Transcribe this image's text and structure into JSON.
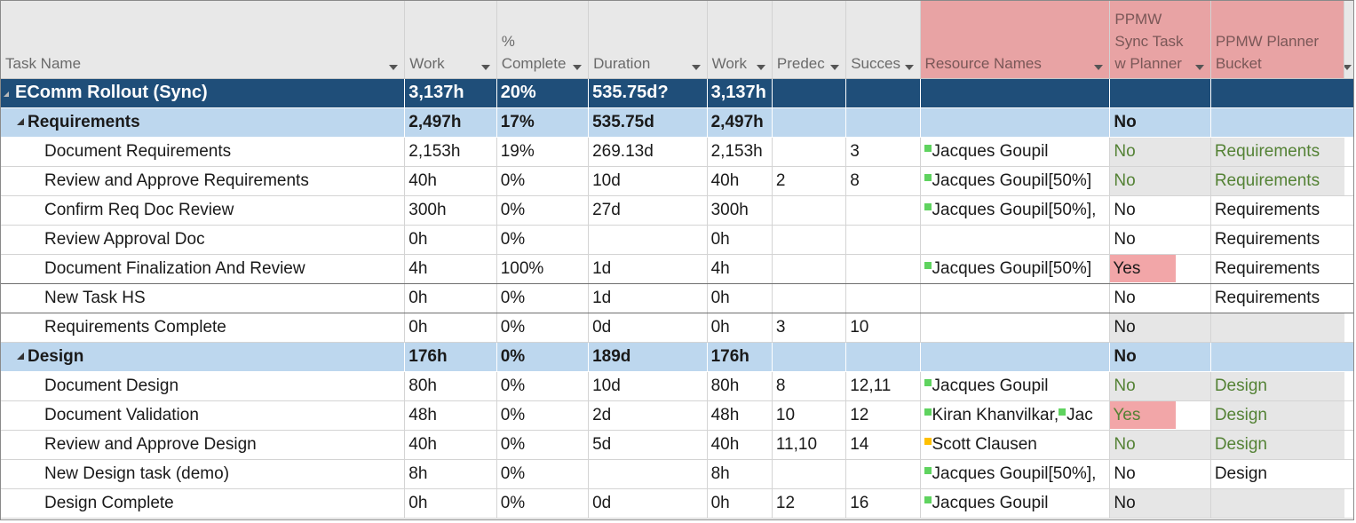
{
  "columns": [
    {
      "key": "task_name",
      "label": "Task Name",
      "has_dropdown": true
    },
    {
      "key": "work",
      "label": "Work",
      "has_dropdown": true
    },
    {
      "key": "percent_complete",
      "label": "% Complete",
      "has_dropdown": true
    },
    {
      "key": "duration",
      "label": "Duration",
      "has_dropdown": true
    },
    {
      "key": "work2",
      "label": "Work",
      "has_dropdown": true
    },
    {
      "key": "predecessors",
      "label": "Predec",
      "has_dropdown": true
    },
    {
      "key": "successors",
      "label": "Succes",
      "has_dropdown": true
    },
    {
      "key": "resource_names",
      "label": "Resource Names",
      "has_dropdown": true
    },
    {
      "key": "sync",
      "label": "PPMW Sync Task w Planner",
      "has_dropdown": true
    },
    {
      "key": "bucket",
      "label": "PPMW Planner Bucket",
      "has_dropdown": false
    }
  ],
  "colors": {
    "project_row": "#1f4e79",
    "summary_row": "#bdd7ee",
    "custom_header": "#e8a3a4",
    "flag_highlight": "#f2a6a8",
    "green_text": "#548235",
    "resource_marker_green": "#5fd35f",
    "resource_marker_yellow": "#ffc000"
  },
  "rows": [
    {
      "type": "project",
      "name": "EComm Rollout (Sync)",
      "work": "3,137h",
      "pct": "20%",
      "duration": "535.75d?",
      "work2": "3,137h",
      "pred": "",
      "succ": "",
      "res": "",
      "res_marker": "",
      "sync": "",
      "bucket": "",
      "sync_style": "",
      "bucket_style": ""
    },
    {
      "type": "summary",
      "name": "Requirements",
      "work": "2,497h",
      "pct": "17%",
      "duration": "535.75d",
      "work2": "2,497h",
      "pred": "",
      "succ": "",
      "res": "",
      "res_marker": "",
      "sync": "No",
      "bucket": "",
      "sync_style": "",
      "bucket_style": ""
    },
    {
      "type": "task",
      "name": "Document Requirements",
      "work": "2,153h",
      "pct": "19%",
      "duration": "269.13d",
      "work2": "2,153h",
      "pred": "",
      "succ": "3",
      "res": "Jacques Goupil",
      "res_marker": "green",
      "sync": "No",
      "bucket": "Requirements",
      "sync_style": "gray-green",
      "bucket_style": "gray-green"
    },
    {
      "type": "task",
      "name": "Review and Approve Requirements",
      "work": "40h",
      "pct": "0%",
      "duration": "10d",
      "work2": "40h",
      "pred": "2",
      "succ": "8",
      "res": "Jacques Goupil[50%]",
      "res_marker": "green",
      "sync": "No",
      "bucket": "Requirements",
      "sync_style": "gray-green",
      "bucket_style": "gray-green"
    },
    {
      "type": "task",
      "name": "Confirm Req Doc Review",
      "work": "300h",
      "pct": "0%",
      "duration": "27d",
      "work2": "300h",
      "pred": "",
      "succ": "",
      "res": "Jacques Goupil[50%],",
      "res_marker": "green",
      "sync": "No",
      "bucket": "Requirements",
      "sync_style": "",
      "bucket_style": ""
    },
    {
      "type": "task",
      "name": "Review Approval Doc",
      "work": "0h",
      "pct": "0%",
      "duration": "",
      "work2": "0h",
      "pred": "",
      "succ": "",
      "res": "",
      "res_marker": "",
      "sync": "No",
      "bucket": "Requirements",
      "sync_style": "",
      "bucket_style": ""
    },
    {
      "type": "task",
      "name": "Document Finalization And Review",
      "work": "4h",
      "pct": "100%",
      "duration": "1d",
      "work2": "4h",
      "pred": "",
      "succ": "",
      "res": "Jacques Goupil[50%]",
      "res_marker": "green",
      "sync": "Yes",
      "bucket": "Requirements",
      "sync_style": "pink",
      "bucket_style": ""
    },
    {
      "type": "task",
      "name": "New Task HS",
      "work": "0h",
      "pct": "0%",
      "duration": "1d",
      "work2": "0h",
      "pred": "",
      "succ": "",
      "res": "",
      "res_marker": "",
      "sync": "No",
      "bucket": "Requirements",
      "sync_style": "",
      "bucket_style": ""
    },
    {
      "type": "task",
      "name": "Requirements Complete",
      "work": "0h",
      "pct": "0%",
      "duration": "0d",
      "work2": "0h",
      "pred": "3",
      "succ": "10",
      "res": "",
      "res_marker": "",
      "sync": "No",
      "bucket": "",
      "sync_style": "gray",
      "bucket_style": "gray"
    },
    {
      "type": "summary",
      "name": "Design",
      "work": "176h",
      "pct": "0%",
      "duration": "189d",
      "work2": "176h",
      "pred": "",
      "succ": "",
      "res": "",
      "res_marker": "",
      "sync": "No",
      "bucket": "",
      "sync_style": "",
      "bucket_style": ""
    },
    {
      "type": "task",
      "name": "Document Design",
      "work": "80h",
      "pct": "0%",
      "duration": "10d",
      "work2": "80h",
      "pred": "8",
      "succ": "12,11",
      "res": "Jacques Goupil",
      "res_marker": "green",
      "sync": "No",
      "bucket": "Design",
      "sync_style": "gray-green",
      "bucket_style": "gray-green"
    },
    {
      "type": "task",
      "name": "Document Validation",
      "work": "48h",
      "pct": "0%",
      "duration": "2d",
      "work2": "48h",
      "pred": "10",
      "succ": "12",
      "res": "Kiran Khanvilkar,",
      "res_marker": "green",
      "res_extra": "Jac",
      "sync": "Yes",
      "bucket": "Design",
      "sync_style": "pink-green",
      "bucket_style": "gray-green"
    },
    {
      "type": "task",
      "name": "Review and Approve Design",
      "work": "40h",
      "pct": "0%",
      "duration": "5d",
      "work2": "40h",
      "pred": "11,10",
      "succ": "14",
      "res": "Scott Clausen",
      "res_marker": "yellow",
      "sync": "No",
      "bucket": "Design",
      "sync_style": "gray-green",
      "bucket_style": "gray-green"
    },
    {
      "type": "task",
      "name": "New Design task (demo)",
      "work": "8h",
      "pct": "0%",
      "duration": "",
      "work2": "8h",
      "pred": "",
      "succ": "",
      "res": "Jacques Goupil[50%],",
      "res_marker": "green",
      "sync": "No",
      "bucket": "Design",
      "sync_style": "",
      "bucket_style": ""
    },
    {
      "type": "task",
      "name": "Design Complete",
      "work": "0h",
      "pct": "0%",
      "duration": "0d",
      "work2": "0h",
      "pred": "12",
      "succ": "16",
      "res": "Jacques Goupil",
      "res_marker": "green",
      "sync": "No",
      "bucket": "",
      "sync_style": "gray",
      "bucket_style": "gray"
    }
  ]
}
